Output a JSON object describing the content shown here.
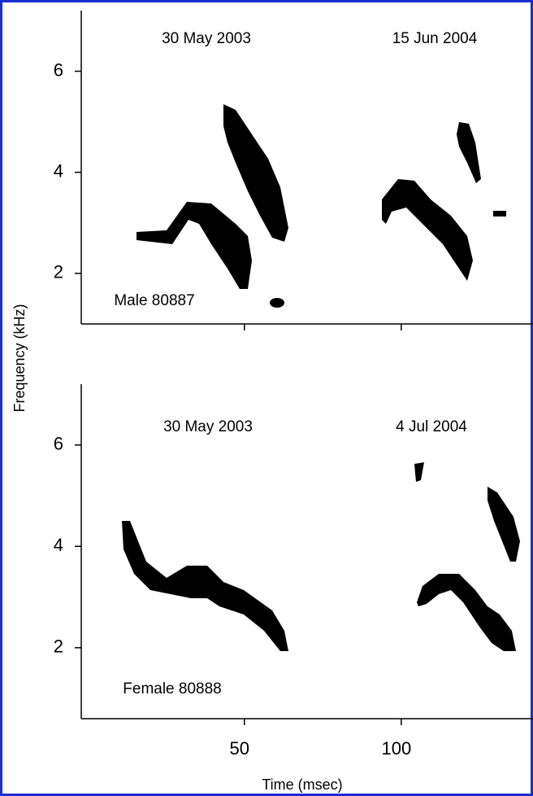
{
  "chart_data": [
    {
      "type": "spectrogram",
      "y_label": "Frequency (kHz)",
      "annotations": [
        "30 May 2003",
        "15 Jun 2004",
        "Male 80887"
      ],
      "ylim": [
        1,
        7.2
      ],
      "yticks": [
        2,
        4,
        6
      ]
    },
    {
      "type": "spectrogram",
      "x_label": "Time (msec)",
      "annotations": [
        "30 May 2003",
        "4 Jul 2004",
        "Female 80888"
      ],
      "xlim": [
        -2,
        142
      ],
      "xticks": [
        50,
        100
      ],
      "ylim": [
        0.6,
        7.2
      ],
      "yticks": [
        2,
        4,
        6
      ]
    }
  ]
}
